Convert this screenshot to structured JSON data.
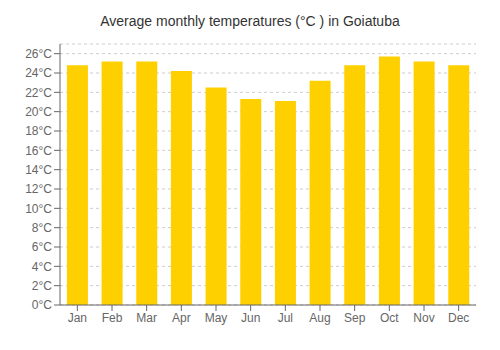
{
  "chart_data": {
    "type": "bar",
    "title": "Average monthly temperatures (°C ) in Goiatuba",
    "categories": [
      "Jan",
      "Feb",
      "Mar",
      "Apr",
      "May",
      "Jun",
      "Jul",
      "Aug",
      "Sep",
      "Oct",
      "Nov",
      "Dec"
    ],
    "values": [
      24.8,
      25.2,
      25.2,
      24.2,
      22.5,
      21.3,
      21.1,
      23.2,
      24.8,
      25.7,
      25.2,
      24.8
    ],
    "color": "#FFD000",
    "ylim": [
      0,
      27
    ],
    "yticks": [
      {
        "value": 0,
        "label": "0°C"
      },
      {
        "value": 2,
        "label": "2°C"
      },
      {
        "value": 4,
        "label": "4°C"
      },
      {
        "value": 6,
        "label": "6°C"
      },
      {
        "value": 8,
        "label": "8°C"
      },
      {
        "value": 10,
        "label": "10°C"
      },
      {
        "value": 12,
        "label": "12°C"
      },
      {
        "value": 14,
        "label": "14°C"
      },
      {
        "value": 16,
        "label": "16°C"
      },
      {
        "value": 18,
        "label": "18°C"
      },
      {
        "value": 20,
        "label": "20°C"
      },
      {
        "value": 22,
        "label": "22°C"
      },
      {
        "value": 24,
        "label": "24°C"
      },
      {
        "value": 26,
        "label": "26°C"
      }
    ],
    "grid": true
  }
}
